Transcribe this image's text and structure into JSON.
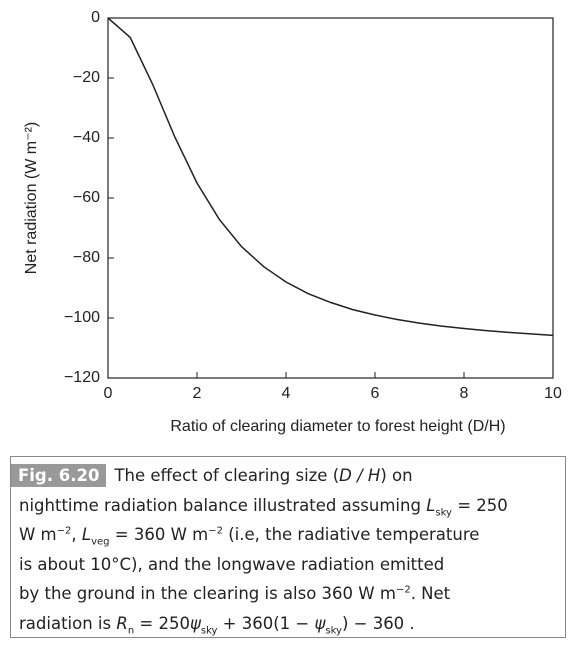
{
  "chart_data": {
    "type": "line",
    "x_label": "Ratio of clearing diameter to forest height (D/H)",
    "y_label": "Net radiation (W m⁻²)",
    "x": [
      0,
      0.5,
      1,
      1.5,
      2,
      2.5,
      3,
      3.5,
      4,
      4.5,
      5,
      5.5,
      6,
      6.5,
      7,
      7.5,
      8,
      8.5,
      9,
      9.5,
      10
    ],
    "values": [
      0,
      -6.5,
      -22,
      -39.6,
      -55,
      -67.1,
      -76.2,
      -82.9,
      -88,
      -91.9,
      -94.8,
      -97.2,
      -99,
      -100.5,
      -101.7,
      -102.7,
      -103.5,
      -104.2,
      -104.8,
      -105.3,
      -105.8
    ],
    "color": "#222222",
    "xlim": [
      0,
      10
    ],
    "xticks": [
      0,
      2,
      4,
      6,
      8,
      10
    ],
    "ylim": [
      -120,
      0
    ],
    "yticks": [
      {
        "value": -120,
        "label": "−120"
      },
      {
        "value": -100,
        "label": "−100"
      },
      {
        "value": -80,
        "label": "−80"
      },
      {
        "value": -60,
        "label": "−60"
      },
      {
        "value": -40,
        "label": "−40"
      },
      {
        "value": -20,
        "label": "−20"
      },
      0
    ]
  },
  "caption": {
    "label": "Fig. 6.20",
    "lines": [
      [
        {
          "text": "The effect of clearing size ("
        },
        {
          "text": "D / H",
          "format": "italic"
        },
        {
          "text": ") on"
        }
      ],
      [
        {
          "text": "nighttime radiation balance illustrated assuming "
        },
        {
          "text": "L",
          "format": "italic"
        },
        {
          "text": "sky",
          "format": "sub"
        },
        {
          "text": " = 250"
        }
      ],
      [
        {
          "text": "W m"
        },
        {
          "text": "−2",
          "format": "sup"
        },
        {
          "text": ", "
        },
        {
          "text": "L",
          "format": "italic"
        },
        {
          "text": "veg",
          "format": "sub"
        },
        {
          "text": " = 360 W m"
        },
        {
          "text": "−2",
          "format": "sup"
        },
        {
          "text": " (i.e, the radiative temperature"
        }
      ],
      [
        {
          "text": "is about 10°C), and the longwave radiation emitted"
        }
      ],
      [
        {
          "text": "by the ground in the clearing is also 360 W m"
        },
        {
          "text": "−2",
          "format": "sup"
        },
        {
          "text": ". Net"
        }
      ],
      [
        {
          "text": "radiation is "
        },
        {
          "text": "R",
          "format": "italic"
        },
        {
          "text": "n",
          "format": "sub"
        },
        {
          "text": " = 250"
        },
        {
          "text": "ψ",
          "format": "italic"
        },
        {
          "text": "sky",
          "format": "sub"
        },
        {
          "text": " + 360(1 − "
        },
        {
          "text": "ψ",
          "format": "italic"
        },
        {
          "text": "sky",
          "format": "sub"
        },
        {
          "text": ") − 360 ."
        }
      ]
    ]
  }
}
